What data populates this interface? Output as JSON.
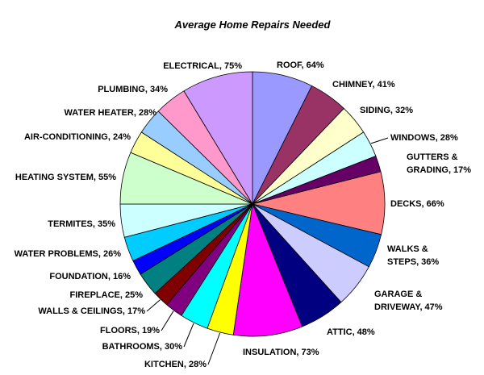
{
  "chart_data": {
    "type": "pie",
    "title": "Average Home Repairs Needed",
    "categories": [
      "ROOF",
      "CHIMNEY",
      "SIDING",
      "WINDOWS",
      "GUTTERS & GRADING",
      "DECKS",
      "WALKS & STEPS",
      "GARAGE & DRIVEWAY",
      "ATTIC",
      "INSULATION",
      "KITCHEN",
      "BATHROOMS",
      "FLOORS",
      "WALLS & CEILINGS",
      "FIREPLACE",
      "FOUNDATION",
      "WATER PROBLEMS",
      "TERMITES",
      "HEATING SYSTEM",
      "AIR-CONDITIONING",
      "WATER HEATER",
      "PLUMBING",
      "ELECTRICAL"
    ],
    "values": [
      64,
      41,
      32,
      28,
      17,
      66,
      36,
      47,
      48,
      73,
      28,
      30,
      19,
      17,
      25,
      16,
      26,
      35,
      55,
      24,
      28,
      34,
      75
    ],
    "colors": [
      "#9999FF",
      "#993366",
      "#FFFFCC",
      "#CCFFFF",
      "#660066",
      "#FF8080",
      "#0066CC",
      "#CCCCFF",
      "#000080",
      "#FF00FF",
      "#FFFF00",
      "#00FFFF",
      "#800080",
      "#800000",
      "#008080",
      "#0000FF",
      "#00CCFF",
      "#CCFFFF",
      "#CCFFCC",
      "#FFFF99",
      "#99CCFF",
      "#FF99CC",
      "#CC99FF"
    ],
    "label_lines": [
      [
        "ROOF, 64%"
      ],
      [
        "CHIMNEY, 41%"
      ],
      [
        "SIDING, 32%"
      ],
      [
        "WINDOWS, 28%"
      ],
      [
        "GUTTERS &",
        "GRADING, 17%"
      ],
      [
        "DECKS, 66%"
      ],
      [
        "WALKS &",
        "STEPS, 36%"
      ],
      [
        "GARAGE &",
        "DRIVEWAY, 47%"
      ],
      [
        "ATTIC, 48%"
      ],
      [
        "INSULATION, 73%"
      ],
      [
        "KITCHEN, 28%"
      ],
      [
        "BATHROOMS, 30%"
      ],
      [
        "FLOORS, 19%"
      ],
      [
        "WALLS & CEILINGS, 17%"
      ],
      [
        "FIREPLACE, 25%"
      ],
      [
        "FOUNDATION, 16%"
      ],
      [
        "WATER PROBLEMS, 26%"
      ],
      [
        "TERMITES, 35%"
      ],
      [
        "HEATING SYSTEM, 55%"
      ],
      [
        "AIR-CONDITIONING, 24%"
      ],
      [
        "WATER HEATER, 28%"
      ],
      [
        "PLUMBING, 34%"
      ],
      [
        "ELECTRICAL, 75%"
      ]
    ],
    "legend": "none",
    "start": "12 o'clock",
    "direction": "clockwise"
  }
}
